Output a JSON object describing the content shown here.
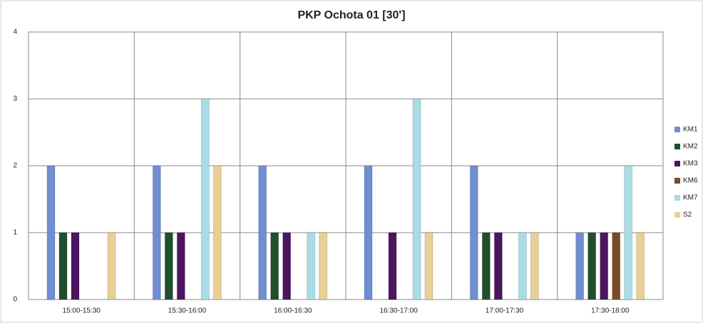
{
  "chart_data": {
    "type": "bar",
    "title": "PKP Ochota 01 [30']",
    "categories": [
      "15:00-15:30",
      "15:30-16:00",
      "16:00-16:30",
      "16:30-17:00",
      "17:00-17:30",
      "17:30-18:00"
    ],
    "series": [
      {
        "name": "KM1",
        "color": "#6f8fd2",
        "values": [
          2,
          2,
          2,
          2,
          2,
          1
        ]
      },
      {
        "name": "KM2",
        "color": "#1f4f2c",
        "values": [
          1,
          1,
          1,
          0,
          1,
          1
        ]
      },
      {
        "name": "KM3",
        "color": "#4b1560",
        "values": [
          1,
          1,
          1,
          1,
          1,
          1
        ]
      },
      {
        "name": "KM6",
        "color": "#7a4a26",
        "values": [
          0,
          0,
          0,
          0,
          0,
          1
        ]
      },
      {
        "name": "KM7",
        "color": "#a8dde6",
        "values": [
          0,
          3,
          1,
          3,
          1,
          2
        ]
      },
      {
        "name": "S2",
        "color": "#e8cf96",
        "values": [
          1,
          2,
          1,
          1,
          1,
          1
        ]
      }
    ],
    "ylim": [
      0,
      4
    ],
    "yticks": [
      0,
      1,
      2,
      3,
      4
    ],
    "grid": true,
    "legend": "right"
  }
}
